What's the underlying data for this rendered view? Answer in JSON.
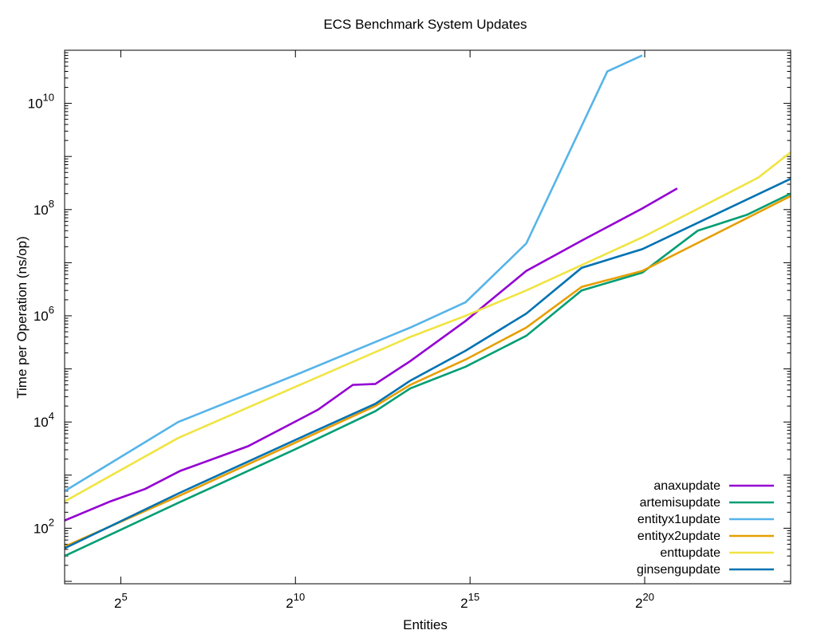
{
  "chart_data": {
    "type": "line",
    "title": "ECS Benchmark System Updates",
    "xlabel": "Entities",
    "ylabel": "Time per Operation (ns/op)",
    "x_scale": "log2",
    "y_scale": "log10",
    "xlim": [
      10.5,
      19000000
    ],
    "ylim": [
      9,
      100000000000
    ],
    "x_ticks": [
      {
        "value": 32,
        "base": "2",
        "exp": "5"
      },
      {
        "value": 1024,
        "base": "2",
        "exp": "10"
      },
      {
        "value": 32768,
        "base": "2",
        "exp": "15"
      },
      {
        "value": 1048576,
        "base": "2",
        "exp": "20"
      }
    ],
    "y_ticks": [
      {
        "value": 100,
        "base": "10",
        "exp": "2"
      },
      {
        "value": 10000,
        "base": "10",
        "exp": "4"
      },
      {
        "value": 1000000,
        "base": "10",
        "exp": "6"
      },
      {
        "value": 100000000,
        "base": "10",
        "exp": "8"
      },
      {
        "value": 10000000000,
        "base": "10",
        "exp": "10"
      }
    ],
    "grid": false,
    "legend_position": "bottom-right",
    "series": [
      {
        "name": "anaxupdate",
        "color": "#9400d3",
        "x": [
          10.5,
          26,
          52,
          104,
          400,
          1600,
          3200,
          5000,
          10000,
          30000,
          100000,
          300000,
          1000000,
          2000000
        ],
        "y": [
          140,
          320,
          550,
          1200,
          3500,
          17000,
          50000,
          52000,
          140000,
          800000,
          7000000,
          26000000,
          105000000,
          250000000
        ]
      },
      {
        "name": "artemisupdate",
        "color": "#009e73",
        "x": [
          10.5,
          100,
          1000,
          5000,
          10000,
          30000,
          100000,
          300000,
          1000000,
          3000000,
          8000000,
          19000000
        ],
        "y": [
          30,
          300,
          3000,
          16000,
          43000,
          110000,
          420000,
          3000000,
          6500000,
          40000000,
          80000000,
          200000000
        ]
      },
      {
        "name": "entityx1update",
        "color": "#56b4e9",
        "x": [
          10.5,
          100,
          1000,
          10000,
          30000,
          100000,
          500000,
          1000000
        ],
        "y": [
          500,
          10000,
          75000,
          600000,
          1800000,
          23000000,
          40000000000,
          80000000000
        ]
      },
      {
        "name": "entityx2update",
        "color": "#e69f00",
        "x": [
          10.5,
          100,
          1000,
          5000,
          10000,
          30000,
          100000,
          300000,
          1000000,
          19000000
        ],
        "y": [
          45,
          400,
          4000,
          20000,
          50000,
          150000,
          600000,
          3500000,
          7000000,
          180000000
        ]
      },
      {
        "name": "enttupdate",
        "color": "#f0e442",
        "x": [
          10.5,
          100,
          1000,
          10000,
          30000,
          100000,
          1000000,
          10000000,
          19000000
        ],
        "y": [
          320,
          5000,
          45000,
          400000,
          1000000,
          3000000,
          30000000,
          400000000,
          1200000000
        ]
      },
      {
        "name": "ginsengupdate",
        "color": "#0072b2",
        "x": [
          10.5,
          100,
          1000,
          5000,
          10000,
          30000,
          100000,
          300000,
          1000000,
          19000000
        ],
        "y": [
          42,
          450,
          4500,
          22000,
          60000,
          220000,
          1100000,
          8000000,
          18000000,
          380000000
        ]
      }
    ]
  }
}
